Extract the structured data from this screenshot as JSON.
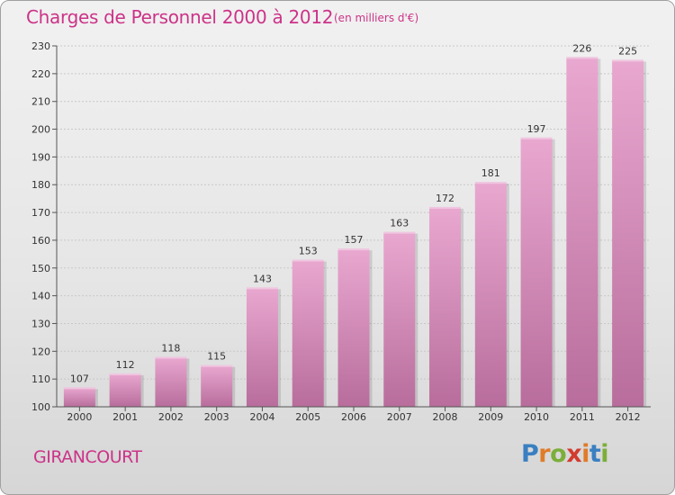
{
  "header": {
    "title": "Charges de Personnel 2000 à 2012",
    "subtitle": "(en milliers d'€)"
  },
  "footer": {
    "commune": "GIRANCOURT",
    "logo_text": "Proxiti"
  },
  "colors": {
    "bar_top": "#e9a8d0",
    "bar_bottom": "#b86d9c",
    "title": "#cc3388",
    "logo_letters": [
      "#3a7fc1",
      "#e07b2a",
      "#7cae3a",
      "#d23b2f",
      "#e07b2a",
      "#3a7fc1",
      "#7cae3a"
    ]
  },
  "chart_data": {
    "type": "bar",
    "title": "Charges de Personnel 2000 à 2012",
    "subtitle": "(en milliers d'€)",
    "categories": [
      "2000",
      "2001",
      "2002",
      "2003",
      "2004",
      "2005",
      "2006",
      "2007",
      "2008",
      "2009",
      "2010",
      "2011",
      "2012"
    ],
    "values": [
      107,
      112,
      118,
      115,
      143,
      153,
      157,
      163,
      172,
      181,
      197,
      226,
      225
    ],
    "ylim": [
      100,
      230
    ],
    "yticks": [
      100,
      110,
      120,
      130,
      140,
      150,
      160,
      170,
      180,
      190,
      200,
      210,
      220,
      230
    ],
    "grid": true,
    "legend": "none",
    "xlabel": "",
    "ylabel": ""
  }
}
